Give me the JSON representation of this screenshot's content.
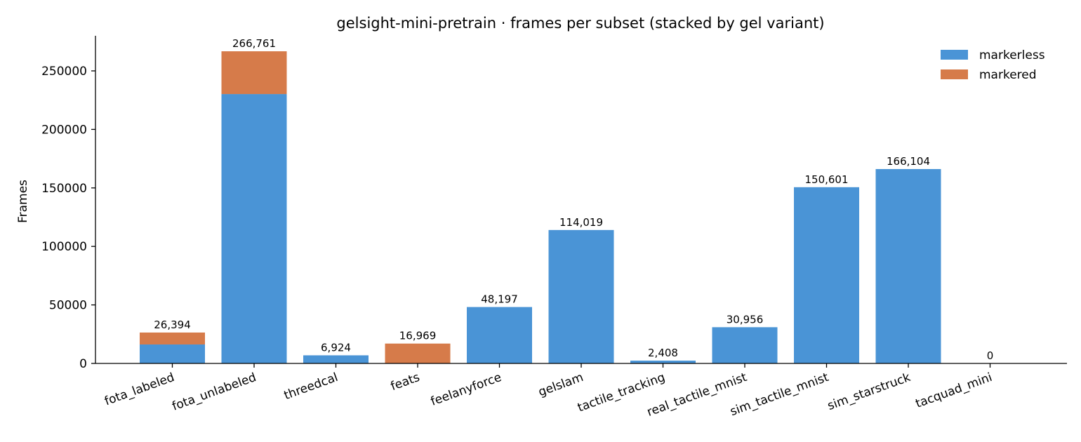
{
  "chart_data": {
    "type": "bar",
    "stacked": true,
    "title": "gelsight-mini-pretrain · frames per subset (stacked by gel variant)",
    "xlabel": "",
    "ylabel": "Frames",
    "ylim": [
      0,
      280000
    ],
    "yticks": [
      0,
      50000,
      100000,
      150000,
      200000,
      250000
    ],
    "ytick_labels": [
      "0",
      "50000",
      "100000",
      "150000",
      "200000",
      "250000"
    ],
    "categories": [
      "fota_labeled",
      "fota_unlabeled",
      "threedcal",
      "feats",
      "feelanyforce",
      "gelslam",
      "tactile_tracking",
      "real_tactile_mnist",
      "sim_tactile_mnist",
      "sim_starstruck",
      "tacquad_mini"
    ],
    "series": [
      {
        "name": "markerless",
        "color": "#4a94d6",
        "values": [
          16200,
          230200,
          6924,
          0,
          48197,
          114019,
          2408,
          30956,
          150601,
          166104,
          0
        ]
      },
      {
        "name": "markered",
        "color": "#d67b4a",
        "values": [
          10194,
          36561,
          0,
          16969,
          0,
          0,
          0,
          0,
          0,
          0,
          0
        ]
      }
    ],
    "totals": [
      26394,
      266761,
      6924,
      16969,
      48197,
      114019,
      2408,
      30956,
      150601,
      166104,
      0
    ],
    "total_labels": [
      "26,394",
      "266,761",
      "6,924",
      "16,969",
      "48,197",
      "114,019",
      "2,408",
      "30,956",
      "150,601",
      "166,104",
      "0"
    ],
    "legend_position": "top-right",
    "grid": false
  }
}
